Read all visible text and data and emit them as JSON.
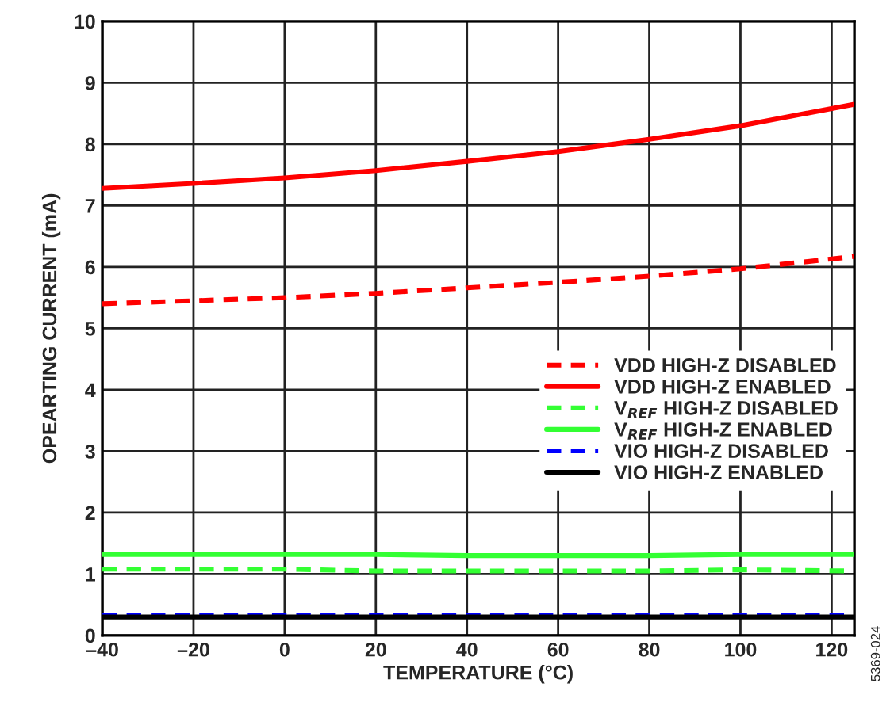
{
  "chart_data": {
    "type": "line",
    "xlabel": "TEMPERATURE (°C)",
    "ylabel": "OPEARTING CURRENT (mA)",
    "x": [
      -40,
      -20,
      0,
      20,
      40,
      60,
      80,
      100,
      125
    ],
    "series": [
      {
        "name": "VDD HIGH-Z DISABLED",
        "color": "#ff0000",
        "line_style": "dashed",
        "values": [
          5.4,
          5.45,
          5.5,
          5.57,
          5.66,
          5.75,
          5.85,
          5.97,
          6.17
        ]
      },
      {
        "name": "VDD HIGH-Z ENABLED",
        "color": "#ff0000",
        "line_style": "solid",
        "values": [
          7.28,
          7.36,
          7.45,
          7.57,
          7.72,
          7.88,
          8.08,
          8.3,
          8.65
        ]
      },
      {
        "name": "V$_{REF}$ HIGH-Z DISABLED",
        "color": "#33ff33",
        "line_style": "dashed",
        "values": [
          1.08,
          1.08,
          1.08,
          1.05,
          1.05,
          1.05,
          1.05,
          1.07,
          1.05
        ]
      },
      {
        "name": "V$_{REF}$ HIGH-Z ENABLED",
        "color": "#33ff33",
        "line_style": "solid",
        "values": [
          1.32,
          1.32,
          1.32,
          1.32,
          1.3,
          1.3,
          1.3,
          1.32,
          1.32
        ]
      },
      {
        "name": "VIO HIGH-Z DISABLED",
        "color": "#0000ff",
        "line_style": "dashed",
        "values": [
          0.32,
          0.32,
          0.32,
          0.32,
          0.32,
          0.32,
          0.32,
          0.32,
          0.33
        ]
      },
      {
        "name": "VIO HIGH-Z ENABLED",
        "color": "#000000",
        "line_style": "solid",
        "values": [
          0.3,
          0.3,
          0.3,
          0.3,
          0.3,
          0.3,
          0.3,
          0.3,
          0.3
        ]
      }
    ],
    "xlim": [
      -40,
      125
    ],
    "ylim": [
      0,
      10
    ],
    "xticks": [
      {
        "value": -40,
        "label": "–40"
      },
      {
        "value": -20,
        "label": "–20"
      },
      0,
      20,
      40,
      60,
      80,
      100,
      120
    ],
    "yticks": [
      0,
      1,
      2,
      3,
      4,
      5,
      6,
      7,
      8,
      9,
      10
    ],
    "grid": true,
    "legend": "right",
    "marker": "none",
    "annotations": [
      "5369-024"
    ]
  }
}
